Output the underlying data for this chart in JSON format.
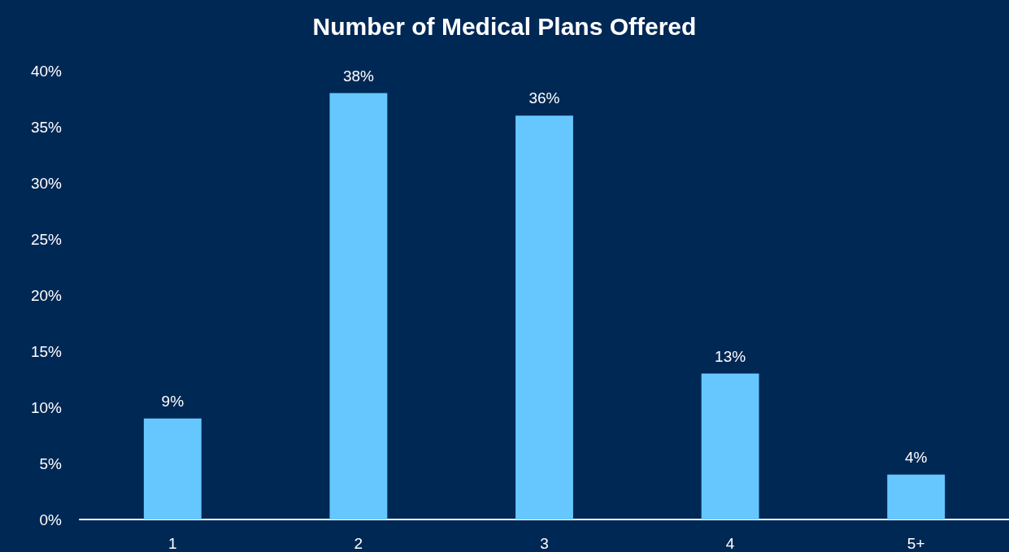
{
  "chart_data": {
    "type": "bar",
    "title": "Number of Medical Plans Offered",
    "categories": [
      "1",
      "2",
      "3",
      "4",
      "5+"
    ],
    "values": [
      9,
      38,
      36,
      13,
      4
    ],
    "value_labels": [
      "9%",
      "38%",
      "36%",
      "13%",
      "4%"
    ],
    "color": "#66c7ff",
    "ylim": [
      0,
      40
    ],
    "yticks": [
      {
        "value": 0,
        "label": "0%"
      },
      {
        "value": 5,
        "label": "5%"
      },
      {
        "value": 10,
        "label": "10%"
      },
      {
        "value": 15,
        "label": "15%"
      },
      {
        "value": 20,
        "label": "20%"
      },
      {
        "value": 25,
        "label": "25%"
      },
      {
        "value": 30,
        "label": "30%"
      },
      {
        "value": 35,
        "label": "35%"
      },
      {
        "value": 40,
        "label": "40%"
      }
    ],
    "grid": false
  }
}
